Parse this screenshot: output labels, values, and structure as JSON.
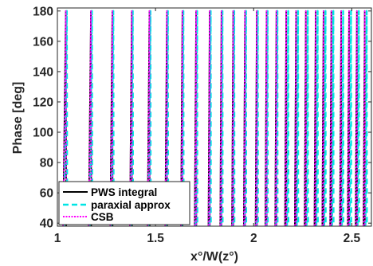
{
  "chart_data": {
    "type": "line",
    "title": "",
    "xlabel": "x°/W(z°)",
    "ylabel": "Phase [deg]",
    "xlim": [
      1,
      2.6
    ],
    "ylim": [
      38,
      182
    ],
    "x_ticks": [
      1,
      1.5,
      2,
      2.5
    ],
    "x_tick_labels": [
      "1",
      "1.5",
      "2",
      "2.5"
    ],
    "y_ticks": [
      40,
      60,
      80,
      100,
      120,
      140,
      160,
      180
    ],
    "y_tick_labels": [
      "40",
      "60",
      "80",
      "100",
      "120",
      "140",
      "160",
      "180"
    ],
    "grid": false,
    "legend_position": "bottom-left",
    "series": [
      {
        "name": "PWS integral",
        "color": "#000000",
        "line_style": "solid",
        "wrap_x": [
          1.03,
          1.16,
          1.27,
          1.37,
          1.46,
          1.55,
          1.63,
          1.7,
          1.77,
          1.83,
          1.89,
          1.95,
          2.01,
          2.06,
          2.11,
          2.16,
          2.21,
          2.26,
          2.31,
          2.35,
          2.39,
          2.44,
          2.48,
          2.52,
          2.56
        ]
      },
      {
        "name": "paraxial approx",
        "color": "#00e5e5",
        "line_style": "dashed",
        "wrap_x": [
          1.035,
          1.165,
          1.275,
          1.375,
          1.465,
          1.555,
          1.635,
          1.705,
          1.775,
          1.835,
          1.895,
          1.955,
          2.015,
          2.065,
          2.115,
          2.17,
          2.22,
          2.27,
          2.32,
          2.36,
          2.4,
          2.45,
          2.49,
          2.53,
          2.57
        ]
      },
      {
        "name": "CSB",
        "color": "#ff00ff",
        "line_style": "dotted",
        "wrap_x": [
          1.03,
          1.16,
          1.27,
          1.37,
          1.46,
          1.55,
          1.63,
          1.7,
          1.77,
          1.83,
          1.89,
          1.95,
          2.01,
          2.06,
          2.11,
          2.16,
          2.21,
          2.26,
          2.31,
          2.35,
          2.39,
          2.44,
          2.48,
          2.52,
          2.56
        ]
      }
    ]
  }
}
